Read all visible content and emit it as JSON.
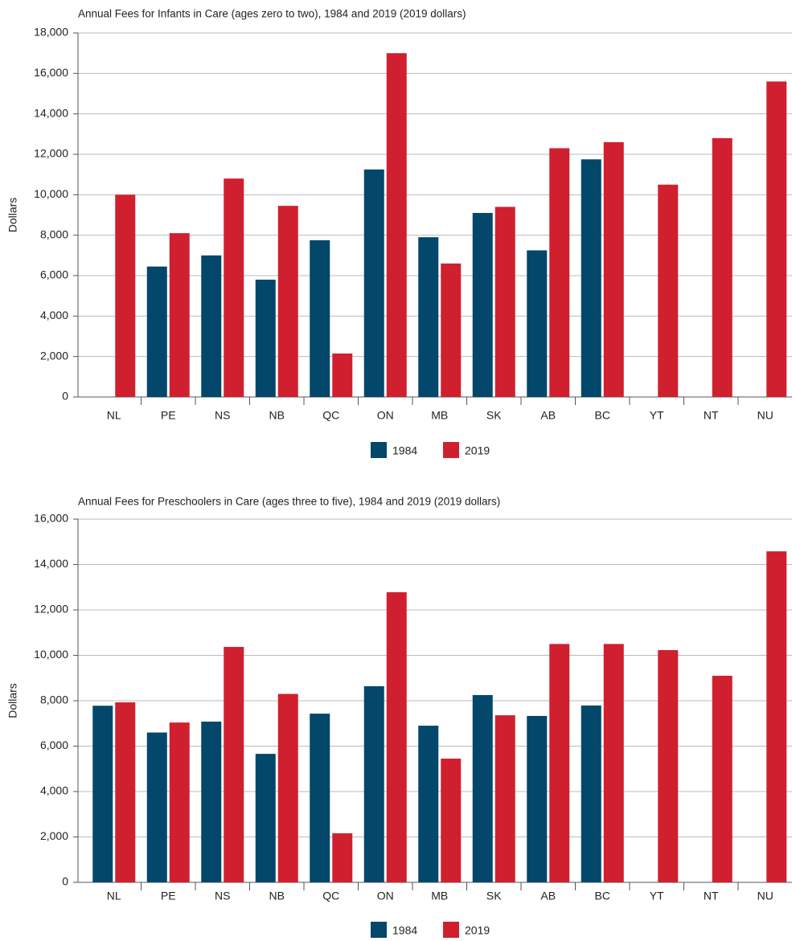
{
  "chart_data": [
    {
      "type": "bar",
      "title": "Annual Fees for Infants in Care (ages zero to two), 1984 and 2019 (2019 dollars)",
      "y_label": "Dollars",
      "categories": [
        "NL",
        "PE",
        "NS",
        "NB",
        "QC",
        "ON",
        "MB",
        "SK",
        "AB",
        "BC",
        "YT",
        "NT",
        "NU"
      ],
      "series": [
        {
          "name": "1984",
          "color": "#03476b",
          "values": [
            null,
            6450,
            7000,
            5800,
            7750,
            11250,
            7900,
            9100,
            7250,
            11750,
            null,
            null,
            null
          ]
        },
        {
          "name": "2019",
          "color": "#d0202f",
          "values": [
            10000,
            8100,
            10800,
            9450,
            2150,
            17000,
            6600,
            9400,
            12300,
            12600,
            10500,
            12800,
            15600
          ]
        }
      ],
      "ylim": [
        0,
        18000
      ],
      "yticks": [
        0,
        {
          "value": 2000,
          "label": "2,000"
        },
        {
          "value": 4000,
          "label": "4,000"
        },
        {
          "value": 6000,
          "label": "6,000"
        },
        {
          "value": 8000,
          "label": "8,000"
        },
        {
          "value": 10000,
          "label": "10,000"
        },
        {
          "value": 12000,
          "label": "12,000"
        },
        {
          "value": 14000,
          "label": "14,000"
        },
        {
          "value": 16000,
          "label": "16,000"
        },
        {
          "value": 18000,
          "label": "18,000"
        }
      ],
      "grid": true,
      "legend": "bottom"
    },
    {
      "type": "bar",
      "title": "Annual Fees for Preschoolers in Care (ages three to five), 1984 and 2019 (2019 dollars)",
      "y_label": "Dollars",
      "categories": [
        "NL",
        "PE",
        "NS",
        "NB",
        "QC",
        "ON",
        "MB",
        "SK",
        "AB",
        "BC",
        "YT",
        "NT",
        "NU"
      ],
      "series": [
        {
          "name": "1984",
          "color": "#03476b",
          "values": [
            7780,
            6600,
            7080,
            5660,
            7430,
            8640,
            6900,
            8250,
            7330,
            7790,
            null,
            null,
            null
          ]
        },
        {
          "name": "2019",
          "color": "#d0202f",
          "values": [
            7930,
            7040,
            10370,
            8300,
            2160,
            12780,
            5450,
            7360,
            10500,
            10500,
            10230,
            9100,
            14580
          ]
        }
      ],
      "ylim": [
        0,
        16000
      ],
      "yticks": [
        0,
        {
          "value": 2000,
          "label": "2,000"
        },
        {
          "value": 4000,
          "label": "4,000"
        },
        {
          "value": 6000,
          "label": "6,000"
        },
        {
          "value": 8000,
          "label": "8,000"
        },
        {
          "value": 10000,
          "label": "10,000"
        },
        {
          "value": 12000,
          "label": "12,000"
        },
        {
          "value": 14000,
          "label": "14,000"
        },
        {
          "value": 16000,
          "label": "16,000"
        }
      ],
      "grid": true,
      "legend": "bottom"
    }
  ]
}
